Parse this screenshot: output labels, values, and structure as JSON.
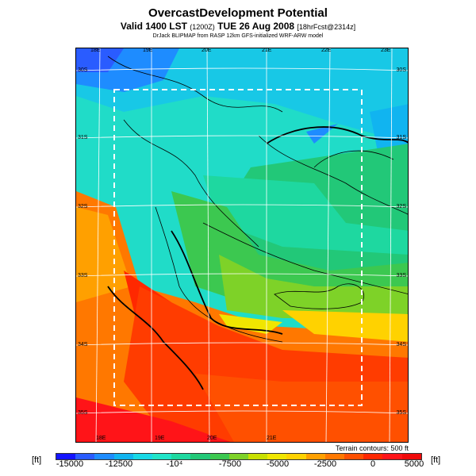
{
  "title": "OvercastDevelopment Potential",
  "subtitle_main": "Valid 1400 LST",
  "subtitle_time_small": "(1200Z)",
  "subtitle_date": "TUE 26 Aug 2008",
  "subtitle_fcst": "[18hrFcst@2314z]",
  "credit": "DrJack BLIPMAP from RASP 12km GFS-initialized WRF-ARW model",
  "terrain_note": "Terrain contours: 500 ft",
  "unit_left": "[ft]",
  "unit_right": "[ft]",
  "lon_labels_top": [
    "18E",
    "19E",
    "20E",
    "21E",
    "22E",
    "23E"
  ],
  "lon_labels_bottom": [
    "18E",
    "19E",
    "20E",
    "21E"
  ],
  "lat_labels_left": [
    "30S",
    "31S",
    "32S",
    "33S",
    "34S",
    "35S"
  ],
  "lat_labels_right": [
    "30S",
    "31S",
    "32S",
    "33S",
    "34S",
    "35S"
  ],
  "colorbar": {
    "ticks": [
      "-15000",
      "-12500",
      "-10⁴",
      "-7500",
      "-5000",
      "-2500",
      "0",
      "5000"
    ],
    "colors": [
      "#1414ff",
      "#2a5cff",
      "#1e8cff",
      "#11b4f0",
      "#18d8e6",
      "#20e4c8",
      "#1ed8a0",
      "#22c878",
      "#3cc850",
      "#7ed228",
      "#c8e000",
      "#f0e600",
      "#ffd200",
      "#ffa000",
      "#ff7800",
      "#ff5000",
      "#ff2800",
      "#ff1418",
      "#f00a0a"
    ]
  }
}
